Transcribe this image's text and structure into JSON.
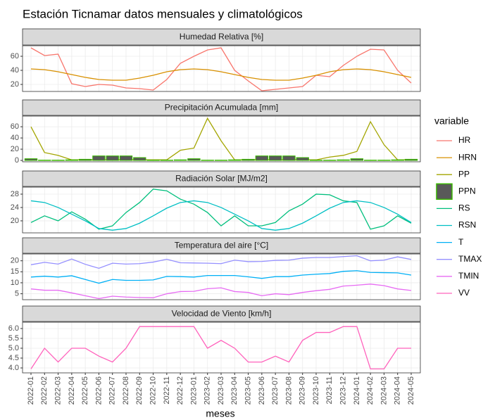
{
  "title": "Estación Ticnamar datos mensuales y climatológicos",
  "xlabel": "meses",
  "legend_title": "variable",
  "categories": [
    "2022-01",
    "2022-02",
    "2022-03",
    "2022-04",
    "2022-05",
    "2022-06",
    "2022-07",
    "2022-08",
    "2022-09",
    "2022-10",
    "2022-11",
    "2022-12",
    "2023-01",
    "2023-02",
    "2023-03",
    "2023-04",
    "2023-05",
    "2023-06",
    "2023-07",
    "2023-08",
    "2023-09",
    "2023-10",
    "2023-11",
    "2023-12",
    "2024-01",
    "2024-02",
    "2024-03",
    "2024-04",
    "2024-05"
  ],
  "chart_data": [
    {
      "type": "line",
      "title": "Humedad Relativa [%]",
      "ylim": [
        10,
        75
      ],
      "yticks": [
        20,
        40,
        60
      ],
      "grid": true,
      "series": [
        {
          "name": "HR",
          "color": "#F8766D",
          "values": [
            72,
            61,
            63,
            21,
            17,
            20,
            19,
            15,
            14,
            12,
            27,
            50,
            60,
            69,
            72,
            40,
            25,
            11,
            13,
            15,
            17,
            33,
            31,
            47,
            60,
            70,
            69,
            40,
            22
          ]
        },
        {
          "name": "HRN",
          "color": "#D89000",
          "values": [
            42,
            41,
            38,
            34,
            30,
            27,
            26,
            26,
            29,
            33,
            38,
            41,
            42,
            41,
            38,
            34,
            30,
            27,
            26,
            26,
            29,
            33,
            38,
            41,
            42,
            41,
            38,
            34,
            30
          ]
        }
      ]
    },
    {
      "type": "line",
      "title": "Precipitación Acumulada [mm]",
      "ylim": [
        -2.5,
        79
      ],
      "yticks": [
        0,
        20,
        40,
        60
      ],
      "grid": true,
      "series": [
        {
          "name": "PP",
          "color": "#A3A500",
          "values": [
            60,
            14,
            9,
            1,
            1,
            1,
            1,
            1,
            1,
            1,
            1,
            18,
            22,
            75,
            35,
            1,
            1,
            1,
            1,
            1,
            1,
            1,
            6,
            9,
            16,
            69,
            28,
            1,
            1
          ]
        },
        {
          "name": "PPN",
          "type": "bar",
          "color": "#595959",
          "edgecolor": "#39B600",
          "values": [
            3,
            0.5,
            0.5,
            1,
            2,
            8,
            8,
            8,
            5,
            0.5,
            0.5,
            1,
            3,
            0.5,
            0.5,
            1,
            2,
            8,
            8,
            8,
            5,
            0.5,
            0.5,
            1,
            3,
            0.5,
            0.5,
            1,
            2
          ]
        }
      ]
    },
    {
      "type": "line",
      "title": "Radiación Solar [MJ/m2]",
      "ylim": [
        16.4,
        30.1
      ],
      "yticks": [
        20,
        24,
        28
      ],
      "grid": true,
      "series": [
        {
          "name": "RS",
          "color": "#00BF7D",
          "values": [
            19.5,
            21.5,
            20,
            22.7,
            20.5,
            17.5,
            18.5,
            22.5,
            25.5,
            29.5,
            29,
            26.5,
            25,
            22.5,
            18.5,
            21.5,
            18.5,
            18.5,
            19.5,
            23,
            25,
            28,
            27.8,
            26,
            25.5,
            17.5,
            18.5,
            21.5,
            19.3
          ]
        },
        {
          "name": "RSN",
          "color": "#00BFC4",
          "values": [
            26,
            25.5,
            24,
            22,
            20,
            17.7,
            17.2,
            17.7,
            19.3,
            21.5,
            23.8,
            25.5,
            26,
            25.5,
            24,
            22,
            20,
            17.7,
            17.2,
            17.7,
            19.3,
            21.5,
            23.8,
            25.5,
            26,
            25.5,
            24,
            22,
            19.5
          ]
        }
      ]
    },
    {
      "type": "line",
      "title": "Temperatura del aire [°C]",
      "ylim": [
        2.3,
        23.1
      ],
      "yticks": [
        5,
        10,
        15,
        20
      ],
      "grid": true,
      "series": [
        {
          "name": "T",
          "color": "#00B0F6",
          "values": [
            12.6,
            13,
            12.6,
            13.2,
            11.5,
            9.8,
            11.5,
            11.1,
            11.1,
            11.3,
            12.9,
            12.8,
            12.6,
            13.3,
            13.3,
            13.3,
            12.7,
            12,
            12.8,
            12.8,
            13.5,
            13.9,
            14.2,
            15.2,
            15.5,
            14.7,
            14.6,
            14.5,
            13.5
          ]
        },
        {
          "name": "TMAX",
          "color": "#9590FF",
          "values": [
            18.2,
            19.3,
            18.5,
            20.8,
            18.4,
            16.6,
            18.9,
            18.5,
            18.7,
            19.4,
            20.7,
            19.1,
            19,
            18.9,
            18.7,
            20.3,
            19.6,
            19.7,
            20.2,
            20.3,
            21.2,
            21.5,
            21.5,
            21.9,
            22.3,
            20,
            20.3,
            21.8,
            20.6
          ]
        },
        {
          "name": "TMIN",
          "color": "#E76BF3",
          "values": [
            7.2,
            6.6,
            6.6,
            5.4,
            4.1,
            2.8,
            3.9,
            3.5,
            3.3,
            3.2,
            5,
            6,
            6.1,
            7.3,
            7.7,
            6,
            5.6,
            4.1,
            5,
            4.6,
            5.6,
            6.4,
            7,
            8.5,
            8.9,
            9.4,
            8.7,
            7.2,
            6.5
          ]
        }
      ]
    },
    {
      "type": "line",
      "title": "Velocidad de Viento [km/h]",
      "ylim": [
        3.75,
        6.32
      ],
      "yticks": [
        {
          "value": 4,
          "label": "4.0"
        },
        4.5,
        {
          "value": 5,
          "label": "5.0"
        },
        5.5,
        {
          "value": 6,
          "label": "6.0"
        }
      ],
      "grid": true,
      "series": [
        {
          "name": "VV",
          "color": "#FF62BC",
          "values": [
            3.95,
            5.0,
            4.3,
            5.0,
            5.0,
            4.6,
            4.3,
            5.0,
            6.1,
            6.1,
            6.1,
            6.1,
            6.1,
            5.0,
            5.4,
            5.0,
            4.3,
            4.3,
            4.6,
            4.3,
            5.4,
            5.8,
            5.8,
            6.1,
            6.1,
            3.95,
            3.95,
            5.0,
            5.0
          ]
        }
      ]
    }
  ]
}
